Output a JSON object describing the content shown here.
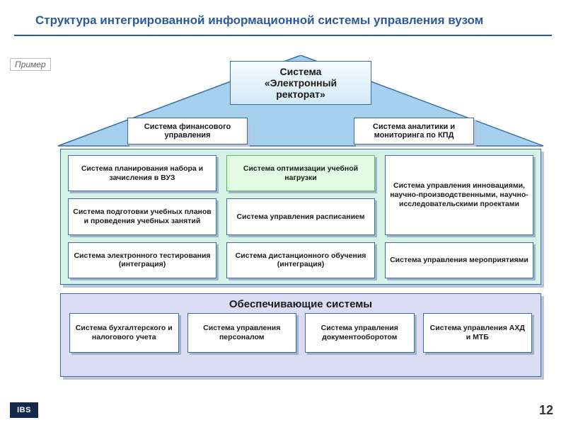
{
  "title": "Структура интегрированной информационной системы управления вузом",
  "example_label": "Пример",
  "page_number": "12",
  "logo_text": "IBS",
  "roof": {
    "apex_lines": [
      "Система",
      "«Электронный",
      "ректорат»"
    ],
    "fill": "#a6d1ee",
    "stroke": "#3b6ca8",
    "left_box": "Система финансового управления",
    "right_box": "Система аналитики и мониторинга по КПД"
  },
  "middle": {
    "bg": "#d6f2e6",
    "cells": [
      {
        "text": "Система планирования набора и зачисления в ВУЗ",
        "col": 1,
        "row": 1
      },
      {
        "text": "Система оптимизации учебной нагрузки",
        "col": 2,
        "row": 1,
        "green": true
      },
      {
        "text": "Система управления инновациями, научно-производственными, научно-исследовательскими проектами",
        "col": 3,
        "row": 1,
        "tall": true
      },
      {
        "text": "Система подготовки учебных планов и проведения учебных занятий",
        "col": 1,
        "row": 2
      },
      {
        "text": "Система управления расписанием",
        "col": 2,
        "row": 2
      },
      {
        "text": "Система электронного тестирования  (интеграция)",
        "col": 1,
        "row": 3
      },
      {
        "text": "Система дистанционного обучения (интеграция)",
        "col": 2,
        "row": 3
      },
      {
        "text": "Система управления мероприятиями",
        "col": 3,
        "row": 3
      }
    ]
  },
  "bottom": {
    "bg": "#dcdcf5",
    "title": "Обеспечивающие системы",
    "cells": [
      "Система бухгалтерского и налогового учета",
      "Система управления персоналом",
      "Система управления документооборотом",
      "Система управления АХД и МТБ"
    ]
  },
  "colors": {
    "title": "#2a5a9e",
    "box_border": "#3b6ca8",
    "box_shadow": "#b9c6d9"
  }
}
